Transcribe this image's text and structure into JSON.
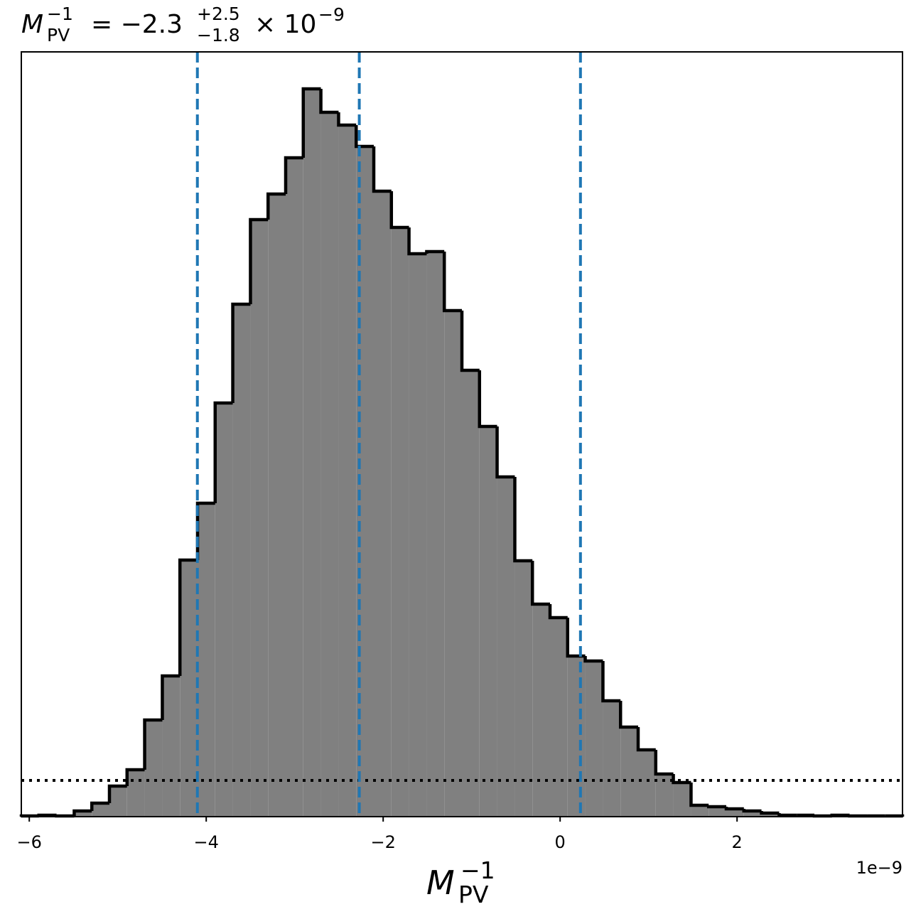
{
  "chart_data": {
    "type": "histogram",
    "title": {
      "symbol": "M",
      "sub": "PV",
      "sup": "−1",
      "rest": "= −2.3",
      "upper": "+2.5",
      "lower": "−1.8",
      "scale": "× 10",
      "exponent": "−9"
    },
    "x_label": {
      "symbol": "M",
      "sub": "PV",
      "sup": "−1"
    },
    "x_offset_label": "1e−9",
    "bins": [
      -6.09,
      -5.891,
      -5.692,
      -5.492,
      -5.293,
      -5.094,
      -4.895,
      -4.696,
      -4.496,
      -4.297,
      -4.098,
      -3.899,
      -3.7,
      -3.5,
      -3.301,
      -3.102,
      -2.903,
      -2.704,
      -2.504,
      -2.305,
      -2.106,
      -1.907,
      -1.708,
      -1.508,
      -1.309,
      -1.11,
      -0.911,
      -0.712,
      -0.512,
      -0.313,
      -0.114,
      0.085,
      0.284,
      0.484,
      0.683,
      0.882,
      1.081,
      1.28,
      1.48,
      1.679,
      1.878,
      2.077,
      2.276,
      2.476,
      2.675,
      2.874,
      3.073,
      3.272,
      3.472,
      3.671,
      3.87
    ],
    "values": [
      1,
      2,
      1,
      8,
      19,
      43,
      66,
      136,
      198,
      361,
      441,
      582,
      721,
      840,
      876,
      927,
      1024,
      991,
      973,
      943,
      880,
      829,
      792,
      795,
      712,
      628,
      549,
      478,
      360,
      299,
      280,
      226,
      219,
      163,
      126,
      94,
      60,
      48,
      16,
      14,
      11,
      8,
      5,
      2,
      2,
      1,
      2,
      1,
      1,
      1
    ],
    "color": "#808080",
    "edge_color": "#000000",
    "xlim": [
      -6.09,
      3.87
    ],
    "ylim": [
      0,
      1076
    ],
    "xticks": [
      {
        "value": -6,
        "label": "−6"
      },
      {
        "value": -4,
        "label": "−4"
      },
      {
        "value": -2,
        "label": "−2"
      },
      0,
      2
    ],
    "vlines": [
      -4.1,
      -2.27,
      0.23
    ],
    "vline_color": "#1f77b4",
    "hline": 51,
    "hline_color": "#000000"
  }
}
